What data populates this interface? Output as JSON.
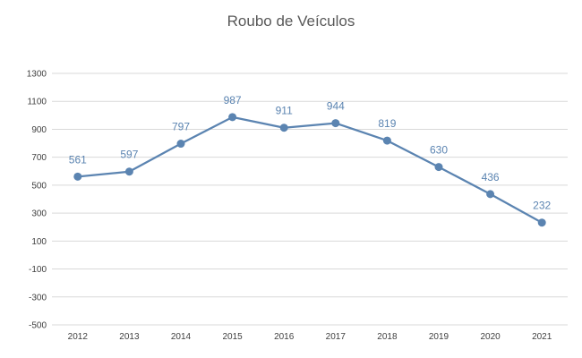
{
  "chart_data": {
    "type": "line",
    "title": "Roubo de Veículos",
    "xlabel": "",
    "ylabel": "",
    "categories": [
      "2012",
      "2013",
      "2014",
      "2015",
      "2016",
      "2017",
      "2018",
      "2019",
      "2020",
      "2021"
    ],
    "series": [
      {
        "values": [
          561,
          597,
          797,
          987,
          911,
          944,
          819,
          630,
          436,
          232
        ]
      }
    ],
    "ylim": [
      -500,
      1300
    ],
    "yticks": [
      1300,
      1100,
      900,
      700,
      500,
      300,
      100,
      -100,
      -300,
      -500
    ],
    "grid": true,
    "legend": "none",
    "line_color": "#5b84b1",
    "grid_color": "#d9d9d9",
    "label_color": "#5b84b1"
  }
}
